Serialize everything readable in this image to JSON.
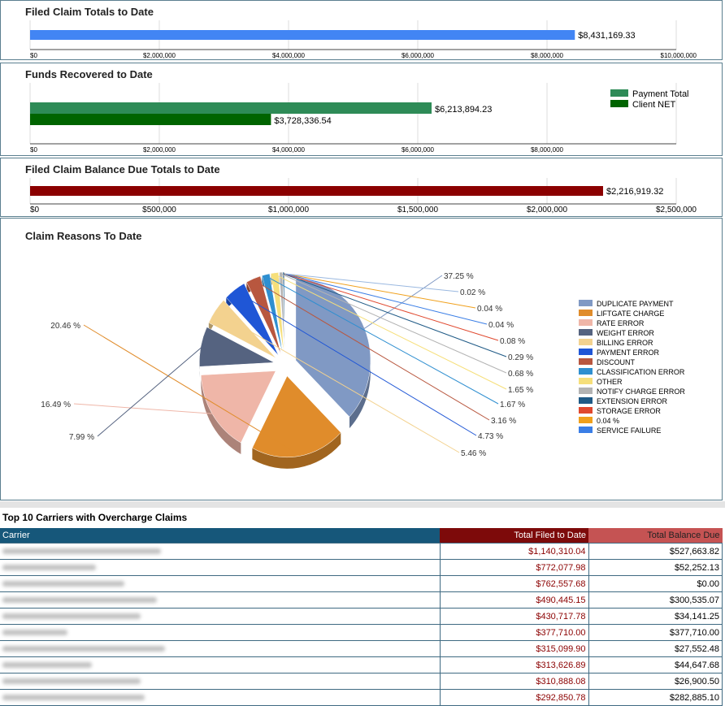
{
  "panels": {
    "filed": {
      "title": "Filed Claim Totals to Date",
      "chart_data": {
        "type": "bar",
        "orientation": "horizontal",
        "title": "Filed Claim Totals to Date",
        "series": [
          {
            "values": [
              8431169.33
            ],
            "labels": [
              "$8,431,169.33"
            ],
            "color": "#4285f4"
          }
        ],
        "xlim": [
          0,
          10000000
        ],
        "ticks": [
          "$0",
          "$2,000,000",
          "$4,000,000",
          "$6,000,000",
          "$8,000,000",
          "$10,000,000"
        ]
      }
    },
    "recovered": {
      "title": "Funds Recovered to Date",
      "chart_data": {
        "type": "bar",
        "orientation": "horizontal",
        "title": "Funds Recovered to Date",
        "series": [
          {
            "name": "Payment Total",
            "values": [
              6213894.23
            ],
            "labels": [
              "$6,213,894.23"
            ],
            "color": "#2e8b57"
          },
          {
            "name": "Client NET",
            "values": [
              3728336.54
            ],
            "labels": [
              "$3,728,336.54"
            ],
            "color": "#006400"
          }
        ],
        "xlim": [
          0,
          10000000
        ],
        "ticks": [
          "$0",
          "$2,000,000",
          "$4,000,000",
          "$6,000,000",
          "$8,000,000"
        ],
        "legend": "top-right"
      }
    },
    "balance": {
      "title": "Filed Claim Balance Due Totals to Date",
      "chart_data": {
        "type": "bar",
        "orientation": "horizontal",
        "title": "Filed Claim Balance Due Totals to Date",
        "series": [
          {
            "values": [
              2216919.32
            ],
            "labels": [
              "$2,216,919.32"
            ],
            "color": "#8b0000"
          }
        ],
        "xlim": [
          0,
          2500000
        ],
        "ticks": [
          "$0",
          "$500,000",
          "$1,000,000",
          "$1,500,000",
          "$2,000,000",
          "$2,500,000"
        ]
      }
    },
    "reasons": {
      "title": "Claim Reasons To Date",
      "chart_data": {
        "type": "pie",
        "title": "Claim Reasons To Date",
        "legend": "right",
        "slices": [
          {
            "name": "DUPLICATE PAYMENT",
            "value": 37.25,
            "label": "37.25 %",
            "color": "#8099c4"
          },
          {
            "name": "LIFTGATE CHARGE",
            "value": 20.46,
            "label": "20.46 %",
            "color": "#e08c2b"
          },
          {
            "name": "RATE ERROR",
            "value": 16.49,
            "label": "16.49 %",
            "color": "#efb6a8"
          },
          {
            "name": "WEIGHT ERROR",
            "value": 7.99,
            "label": "7.99 %",
            "color": "#556380"
          },
          {
            "name": "BILLING ERROR",
            "value": 5.46,
            "label": "5.46 %",
            "color": "#f3d28f"
          },
          {
            "name": "PAYMENT ERROR",
            "value": 4.73,
            "label": "4.73 %",
            "color": "#1f56d6"
          },
          {
            "name": "DISCOUNT",
            "value": 3.16,
            "label": "3.16 %",
            "color": "#b8573f"
          },
          {
            "name": "CLASSIFICATION ERROR",
            "value": 1.67,
            "label": "1.67 %",
            "color": "#2f8fd0"
          },
          {
            "name": "OTHER",
            "value": 1.65,
            "label": "1.65 %",
            "color": "#f6df7a"
          },
          {
            "name": "NOTIFY CHARGE ERROR",
            "value": 0.68,
            "label": "0.68 %",
            "color": "#b3b3b3"
          },
          {
            "name": "EXTENSION ERROR",
            "value": 0.29,
            "label": "0.29 %",
            "color": "#1f5a86"
          },
          {
            "name": "STORAGE ERROR",
            "value": 0.08,
            "label": "0.08 %",
            "color": "#e0482e"
          },
          {
            "name": "0.04 %",
            "value": 0.04,
            "label": "0.04 %",
            "color": "#f0a01c"
          },
          {
            "name": "SERVICE FAILURE",
            "value": 0.04,
            "label": "0.04 %",
            "color": "#3a7ee6"
          },
          {
            "name": "",
            "value": 0.02,
            "label": "0.02 %",
            "color": "#9ab8e0"
          }
        ]
      }
    }
  },
  "table": {
    "title": "Top 10 Carriers with Overcharge Claims",
    "headers": {
      "carrier": "Carrier",
      "filed": "Total Filed to Date",
      "balance": "Total Balance Due"
    },
    "rows": [
      {
        "filed": "$1,140,310.04",
        "balance": "$527,663.82"
      },
      {
        "filed": "$772,077.98",
        "balance": "$52,252.13"
      },
      {
        "filed": "$762,557.68",
        "balance": "$0.00"
      },
      {
        "filed": "$490,445.15",
        "balance": "$300,535.07"
      },
      {
        "filed": "$430,717.78",
        "balance": "$34,141.25"
      },
      {
        "filed": "$377,710.00",
        "balance": "$377,710.00"
      },
      {
        "filed": "$315,099.90",
        "balance": "$27,552.48"
      },
      {
        "filed": "$313,626.89",
        "balance": "$44,647.68"
      },
      {
        "filed": "$310,888.08",
        "balance": "$26,900.50"
      },
      {
        "filed": "$292,850.78",
        "balance": "$282,885.10"
      }
    ]
  }
}
